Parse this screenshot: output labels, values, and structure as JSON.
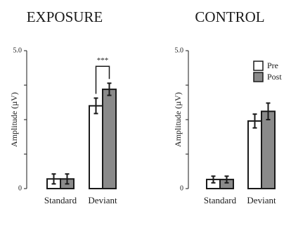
{
  "chart_data": [
    {
      "type": "bar",
      "title": "EXPOSURE",
      "ylabel": "Amplitude (µV)",
      "xlabel": "",
      "categories": [
        "Standard",
        "Deviant"
      ],
      "ylim": [
        0,
        5.0
      ],
      "yticks": [
        0,
        1.25,
        2.5,
        3.75,
        5.0
      ],
      "ytick_labels": [
        "0",
        "",
        "",
        "",
        "5.0"
      ],
      "series": [
        {
          "name": "Pre",
          "values": [
            0.35,
            3.0
          ],
          "errors": [
            0.18,
            0.28
          ]
        },
        {
          "name": "Post",
          "values": [
            0.35,
            3.6
          ],
          "errors": [
            0.18,
            0.22
          ]
        }
      ],
      "annotation": {
        "text": "***",
        "category": "Deviant"
      },
      "legend": false
    },
    {
      "type": "bar",
      "title": "CONTROL",
      "ylabel": "Amplitude (µV)",
      "xlabel": "",
      "categories": [
        "Standard",
        "Deviant"
      ],
      "ylim": [
        0,
        5.0
      ],
      "yticks": [
        0,
        1.25,
        2.5,
        3.75,
        5.0
      ],
      "ytick_labels": [
        "0",
        "",
        "",
        "",
        "5.0"
      ],
      "series": [
        {
          "name": "Pre",
          "values": [
            0.33,
            2.45
          ],
          "errors": [
            0.12,
            0.25
          ]
        },
        {
          "name": "Post",
          "values": [
            0.33,
            2.8
          ],
          "errors": [
            0.12,
            0.3
          ]
        }
      ],
      "legend": true,
      "legend_position": "top-right"
    }
  ],
  "colors": {
    "pre": "#ffffff",
    "post": "#8a8a8a",
    "edge": "#1a1a1a"
  }
}
